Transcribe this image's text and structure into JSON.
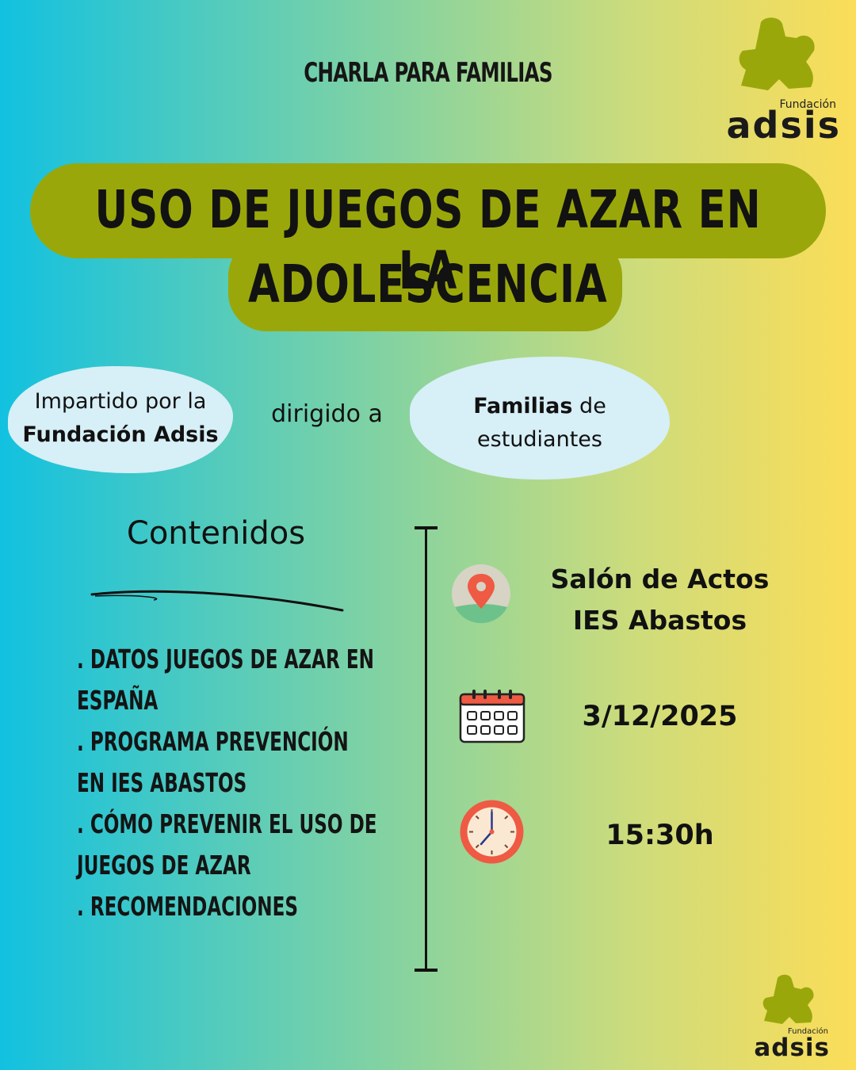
{
  "header": {
    "eyebrow": "CHARLA PARA FAMILIAS",
    "logo_small": "Fundación",
    "logo_main": "adsis"
  },
  "title": {
    "line1": "USO DE JUEGOS DE AZAR EN LA",
    "line2": "ADOLESCENCIA"
  },
  "speaker": {
    "prefix": "Impartido por la",
    "name": "Fundación Adsis"
  },
  "connector": "dirigido a",
  "audience": {
    "bold": "Familias",
    "rest_1": " de",
    "rest_2": "estudiantes"
  },
  "contents": {
    "heading": "Contenidos",
    "items": [
      ". DATOS JUEGOS DE AZAR EN ESPAÑA",
      ". PROGRAMA PREVENCIÓN EN IES ABASTOS",
      ". CÓMO PREVENIR EL USO DE JUEGOS DE AZAR",
      ". RECOMENDACIONES"
    ]
  },
  "details": {
    "venue_line1": "Salón de Actos",
    "venue_line2": "IES Abastos",
    "date": "3/12/2025",
    "time": "15:30h"
  },
  "icons": {
    "venue": "location-pin-icon",
    "date": "calendar-icon",
    "time": "clock-icon"
  },
  "colors": {
    "pill": "#9aa70b",
    "blob": "#d7eff6",
    "logo_green": "#9aa70b",
    "pin_red": "#ee5a43",
    "clock_red": "#ee5a43"
  }
}
